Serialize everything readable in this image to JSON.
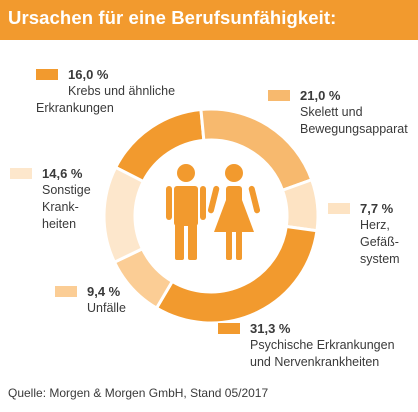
{
  "header": {
    "title": "Ursachen für eine Berufsunfähigkeit:",
    "background": "#f29a2e"
  },
  "chart_data": {
    "type": "pie",
    "donut": true,
    "title": "Ursachen für eine Berufsunfähigkeit:",
    "slices": [
      {
        "label_line1": "Krebs und ähnliche",
        "label_line2": "Erkrankungen",
        "value": 16.0,
        "value_label": "16,0 %",
        "color": "#f29a2e"
      },
      {
        "label_line1": "Skelett und",
        "label_line2": "Bewegungsapparat",
        "value": 21.0,
        "value_label": "21,0 %",
        "color": "#f7b96e"
      },
      {
        "label_line1": "Herz,",
        "label_line2": "Gefäß-\nsystem",
        "value": 7.7,
        "value_label": "7,7 %",
        "color": "#fde3c3"
      },
      {
        "label_line1": "Psychische Erkrankungen",
        "label_line2": "und Nervenkrankheiten",
        "value": 31.3,
        "value_label": "31,3 %",
        "color": "#f29a2e"
      },
      {
        "label_line1": "Unfälle",
        "label_line2": "",
        "value": 9.4,
        "value_label": "9,4 %",
        "color": "#fbcd95"
      },
      {
        "label_line1": "Sonstige",
        "label_line2": "Krank-\nheiten",
        "value": 14.6,
        "value_label": "14,6 %",
        "color": "#fde7cc"
      }
    ],
    "center_icon": "man-and-woman-icon",
    "icon_color": "#f29a2e"
  },
  "footer": {
    "source": "Quelle: Morgen & Morgen GmbH, Stand 05/2017"
  }
}
